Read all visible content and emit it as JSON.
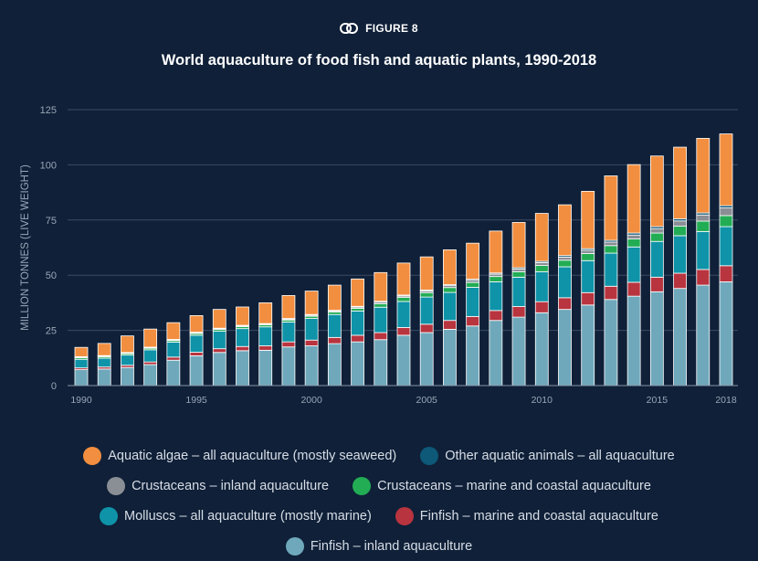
{
  "figure": {
    "label": "FIGURE 8",
    "icon": "link-icon"
  },
  "chart_data": {
    "type": "bar",
    "stacked": true,
    "title": "World aquaculture of food fish and aquatic plants, 1990-2018",
    "xlabel": "",
    "ylabel": "MILLION TONNES (LIVE WEIGHT)",
    "ylim": [
      0,
      125
    ],
    "yticks": [
      0,
      25,
      50,
      75,
      100,
      125
    ],
    "xtick_labels": [
      "1990",
      "1995",
      "2000",
      "2005",
      "2010",
      "2015",
      "2018"
    ],
    "grid": true,
    "legend_position": "bottom",
    "categories": [
      "1990",
      "1991",
      "1992",
      "1993",
      "1994",
      "1995",
      "1996",
      "1997",
      "1998",
      "1999",
      "2000",
      "2001",
      "2002",
      "2003",
      "2004",
      "2005",
      "2006",
      "2007",
      "2008",
      "2009",
      "2010",
      "2011",
      "2012",
      "2013",
      "2014",
      "2015",
      "2016",
      "2017",
      "2018"
    ],
    "series": [
      {
        "name": "Finfish – inland aquaculture",
        "color": "#6fa8bb",
        "values": [
          7.2,
          7.5,
          8.2,
          9.5,
          11.5,
          13.5,
          15.0,
          15.8,
          16.0,
          17.5,
          18.0,
          19.0,
          19.8,
          20.8,
          22.8,
          24.0,
          25.5,
          27.0,
          29.5,
          31.0,
          33.0,
          34.5,
          36.5,
          39.0,
          40.5,
          42.5,
          44.0,
          45.5,
          47.0
        ]
      },
      {
        "name": "Finfish – marine and coastal aquaculture",
        "color": "#b8343f",
        "values": [
          0.8,
          0.9,
          1.0,
          1.2,
          1.4,
          1.6,
          1.7,
          1.9,
          2.0,
          2.3,
          2.6,
          2.8,
          3.0,
          3.2,
          3.5,
          3.8,
          4.0,
          4.3,
          4.5,
          4.8,
          5.0,
          5.3,
          5.6,
          6.0,
          6.3,
          6.6,
          6.9,
          7.1,
          7.3
        ]
      },
      {
        "name": "Molluscs – all aquaculture (mostly marine)",
        "color": "#0f93a8",
        "values": [
          3.9,
          4.0,
          4.6,
          5.5,
          6.8,
          7.7,
          7.9,
          8.1,
          8.6,
          9.0,
          9.8,
          10.4,
          11.0,
          11.5,
          11.8,
          12.3,
          12.7,
          13.2,
          13.0,
          13.3,
          13.6,
          14.0,
          14.5,
          15.0,
          16.0,
          16.2,
          17.0,
          17.2,
          17.7
        ]
      },
      {
        "name": "Crustaceans – marine and coastal aquaculture",
        "color": "#22ad55",
        "values": [
          0.7,
          0.7,
          0.7,
          0.7,
          0.7,
          0.8,
          0.8,
          0.9,
          0.9,
          0.9,
          1.0,
          1.1,
          1.2,
          1.6,
          1.8,
          2.0,
          2.2,
          2.2,
          2.4,
          2.5,
          2.8,
          3.0,
          3.2,
          3.4,
          3.6,
          3.8,
          4.3,
          4.7,
          5.0
        ]
      },
      {
        "name": "Crustaceans – inland aquaculture",
        "color": "#8a8e95",
        "values": [
          0.3,
          0.3,
          0.3,
          0.3,
          0.3,
          0.4,
          0.4,
          0.4,
          0.4,
          0.4,
          0.5,
          0.5,
          0.6,
          0.7,
          0.7,
          0.8,
          0.9,
          1.0,
          1.1,
          1.2,
          1.3,
          1.4,
          1.5,
          1.6,
          1.8,
          2.0,
          2.4,
          2.8,
          3.5
        ]
      },
      {
        "name": "Other aquatic animals – all aquaculture",
        "color": "#0e5878",
        "values": [
          0.2,
          0.2,
          0.2,
          0.2,
          0.2,
          0.2,
          0.2,
          0.2,
          0.2,
          0.3,
          0.3,
          0.3,
          0.3,
          0.4,
          0.4,
          0.4,
          0.4,
          0.5,
          0.5,
          0.6,
          0.6,
          0.7,
          0.7,
          0.8,
          0.9,
          0.9,
          0.9,
          0.9,
          1.0
        ]
      },
      {
        "name": "Aquatic algae – all aquaculture (mostly seaweed)",
        "color": "#f28e3f",
        "values": [
          4.2,
          5.5,
          7.5,
          8.2,
          7.6,
          7.5,
          8.5,
          8.3,
          9.4,
          10.4,
          10.6,
          11.4,
          12.4,
          13.0,
          14.5,
          15.0,
          15.8,
          16.3,
          19.0,
          20.5,
          21.7,
          23.0,
          26.0,
          29.2,
          31.0,
          32.0,
          32.5,
          33.8,
          32.5
        ]
      }
    ]
  },
  "legend": {
    "rows": [
      [
        {
          "label": "Aquatic algae – all aquaculture (mostly seaweed)",
          "color": "#f28e3f"
        },
        {
          "label": "Other aquatic animals – all aquaculture",
          "color": "#0e5878"
        }
      ],
      [
        {
          "label": "Crustaceans – inland aquaculture",
          "color": "#8a8e95"
        },
        {
          "label": "Crustaceans – marine and coastal aquaculture",
          "color": "#22ad55"
        }
      ],
      [
        {
          "label": "Molluscs – all aquaculture (mostly marine)",
          "color": "#0f93a8"
        },
        {
          "label": "Finfish – marine and coastal aquaculture",
          "color": "#b8343f"
        }
      ],
      [
        {
          "label": "Finfish – inland aquaculture",
          "color": "#6fa8bb"
        }
      ]
    ]
  },
  "colors": {
    "background": "#0f2038",
    "gridline": "#3a4b63",
    "axis_text": "#9aa6b7"
  }
}
